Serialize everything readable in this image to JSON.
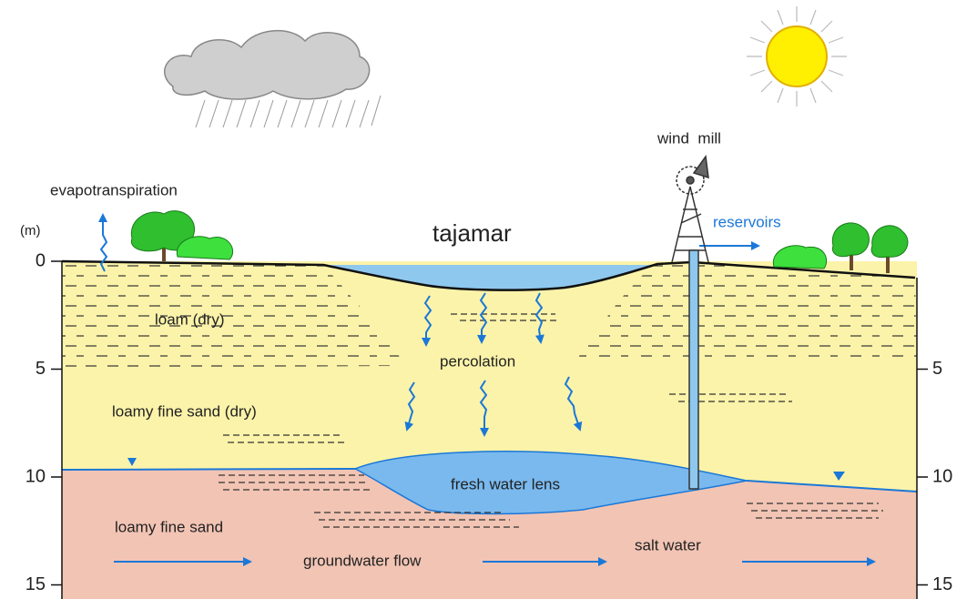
{
  "depth_axis": {
    "unit": "(m)",
    "left_ticks": [
      0,
      5,
      10,
      15
    ],
    "right_ticks": [
      5,
      10,
      15
    ]
  },
  "labels": {
    "evapotranspiration": "evapotranspiration",
    "tajamar": "tajamar",
    "wind_mill": "wind  mill",
    "reservoirs": "reservoirs",
    "loam_dry": "loam (dry)",
    "percolation": "percolation",
    "loamy_fine_sand_dry": "loamy fine sand (dry)",
    "fresh_water_lens": "fresh water lens",
    "loamy_fine_sand": "loamy fine sand",
    "groundwater_flow": "groundwater flow",
    "salt_water": "salt water"
  }
}
